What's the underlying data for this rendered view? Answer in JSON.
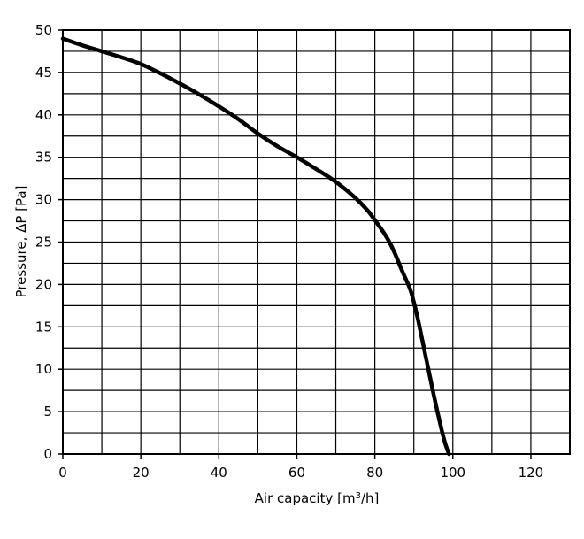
{
  "chart_data": {
    "type": "line",
    "title": "",
    "xlabel": "Air capacity [m",
    "xlabel_sup": "3",
    "xlabel_tail": "/h]",
    "ylabel": "Pressure, ΔP [Pa]",
    "xlim": [
      0,
      130
    ],
    "ylim": [
      0,
      50
    ],
    "x_ticks": [
      0,
      20,
      40,
      60,
      80,
      100,
      120
    ],
    "y_ticks": [
      0,
      5,
      10,
      15,
      20,
      25,
      30,
      35,
      40,
      45,
      50
    ],
    "x_grid_step": 10,
    "y_grid_step": 2.5,
    "grid": true,
    "legend": "none",
    "series": [
      {
        "x": [
          0,
          5,
          10,
          15,
          20,
          25,
          30,
          35,
          40,
          45,
          50,
          55,
          60,
          65,
          70,
          75,
          78,
          80,
          83,
          85,
          87,
          89,
          90,
          91,
          92,
          93,
          94,
          95,
          96,
          97,
          98,
          99
        ],
        "y": [
          49,
          48.2,
          47.5,
          46.8,
          46,
          44.9,
          43.7,
          42.4,
          41,
          39.5,
          37.8,
          36.3,
          35,
          33.6,
          32.1,
          30.2,
          28.8,
          27.6,
          25.6,
          23.8,
          21.6,
          19.5,
          17.9,
          16,
          13.8,
          11.6,
          9.4,
          7.2,
          5.1,
          3.1,
          1.3,
          0
        ],
        "color": "#000000"
      }
    ]
  }
}
